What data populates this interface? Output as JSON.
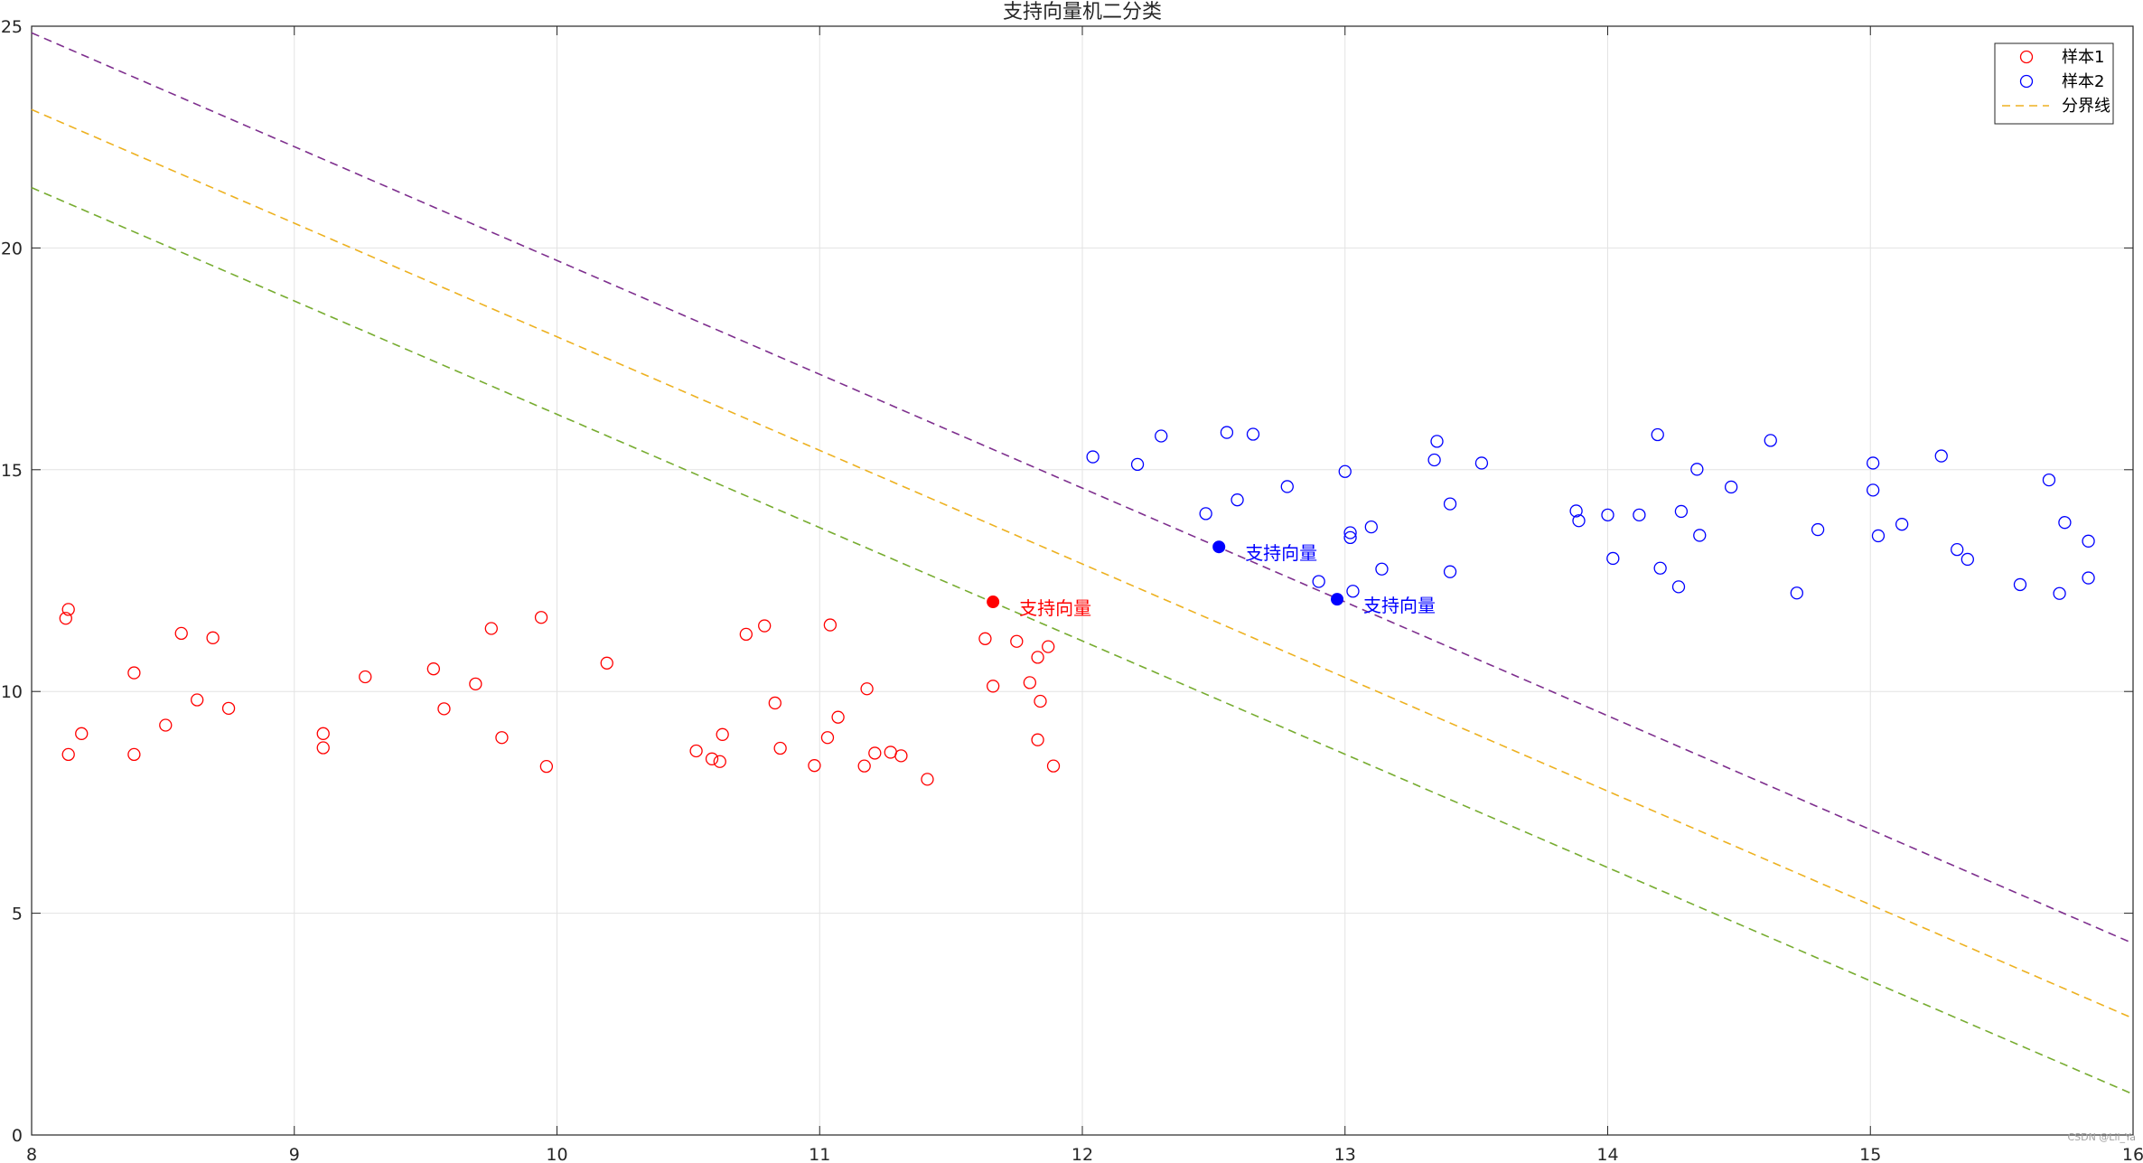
{
  "chart_data": {
    "type": "scatter",
    "title": "支持向量机二分类",
    "xlabel": "",
    "ylabel": "",
    "xlim": [
      8,
      16
    ],
    "ylim": [
      0,
      25
    ],
    "xticks": [
      8,
      9,
      10,
      11,
      12,
      13,
      14,
      15,
      16
    ],
    "yticks": [
      0,
      5,
      10,
      15,
      20,
      25
    ],
    "grid": true,
    "legend_position": "top-right",
    "series": [
      {
        "name": "样本1",
        "marker": "open-circle",
        "color": "#ff0000",
        "points": [
          [
            8.13,
            11.65
          ],
          [
            8.14,
            11.85
          ],
          [
            8.14,
            8.58
          ],
          [
            8.19,
            9.05
          ],
          [
            8.39,
            10.42
          ],
          [
            8.39,
            8.58
          ],
          [
            8.51,
            9.24
          ],
          [
            8.57,
            11.31
          ],
          [
            8.63,
            9.81
          ],
          [
            8.69,
            11.21
          ],
          [
            8.75,
            9.62
          ],
          [
            9.11,
            9.05
          ],
          [
            9.11,
            8.73
          ],
          [
            9.27,
            10.33
          ],
          [
            9.53,
            10.51
          ],
          [
            9.57,
            9.61
          ],
          [
            9.69,
            10.17
          ],
          [
            9.75,
            11.42
          ],
          [
            9.79,
            8.96
          ],
          [
            9.94,
            11.67
          ],
          [
            9.96,
            8.31
          ],
          [
            10.19,
            10.64
          ],
          [
            10.53,
            8.66
          ],
          [
            10.59,
            8.48
          ],
          [
            10.62,
            8.42
          ],
          [
            10.63,
            9.03
          ],
          [
            10.72,
            11.29
          ],
          [
            10.79,
            11.48
          ],
          [
            10.83,
            9.74
          ],
          [
            10.85,
            8.72
          ],
          [
            10.98,
            8.33
          ],
          [
            11.03,
            8.96
          ],
          [
            11.04,
            11.5
          ],
          [
            11.07,
            9.42
          ],
          [
            11.17,
            8.32
          ],
          [
            11.18,
            10.06
          ],
          [
            11.21,
            8.61
          ],
          [
            11.27,
            8.63
          ],
          [
            11.31,
            8.55
          ],
          [
            11.41,
            8.02
          ],
          [
            11.63,
            11.19
          ],
          [
            11.66,
            10.12
          ],
          [
            11.75,
            11.13
          ],
          [
            11.8,
            10.2
          ],
          [
            11.83,
            10.77
          ],
          [
            11.84,
            9.78
          ],
          [
            11.83,
            8.91
          ],
          [
            11.87,
            11.01
          ],
          [
            11.89,
            8.32
          ]
        ]
      },
      {
        "name": "样本2",
        "marker": "open-circle",
        "color": "#0000ff",
        "points": [
          [
            12.04,
            15.29
          ],
          [
            12.21,
            15.12
          ],
          [
            12.3,
            15.76
          ],
          [
            12.47,
            14.01
          ],
          [
            12.55,
            15.84
          ],
          [
            12.59,
            14.32
          ],
          [
            12.65,
            15.8
          ],
          [
            12.78,
            14.62
          ],
          [
            12.9,
            12.48
          ],
          [
            13.0,
            14.96
          ],
          [
            13.02,
            13.58
          ],
          [
            13.02,
            13.47
          ],
          [
            13.03,
            12.26
          ],
          [
            13.1,
            13.71
          ],
          [
            13.14,
            12.76
          ],
          [
            13.34,
            15.22
          ],
          [
            13.35,
            15.64
          ],
          [
            13.4,
            14.23
          ],
          [
            13.4,
            12.7
          ],
          [
            13.52,
            15.15
          ],
          [
            13.88,
            14.07
          ],
          [
            13.89,
            13.85
          ],
          [
            14.0,
            13.98
          ],
          [
            14.02,
            13.0
          ],
          [
            14.12,
            13.98
          ],
          [
            14.19,
            15.79
          ],
          [
            14.2,
            12.78
          ],
          [
            14.27,
            12.36
          ],
          [
            14.28,
            14.06
          ],
          [
            14.34,
            15.01
          ],
          [
            14.35,
            13.52
          ],
          [
            14.47,
            14.61
          ],
          [
            14.62,
            15.66
          ],
          [
            14.72,
            12.22
          ],
          [
            14.8,
            13.65
          ],
          [
            15.01,
            15.15
          ],
          [
            15.01,
            14.54
          ],
          [
            15.03,
            13.51
          ],
          [
            15.12,
            13.77
          ],
          [
            15.27,
            15.31
          ],
          [
            15.33,
            13.2
          ],
          [
            15.37,
            12.98
          ],
          [
            15.57,
            12.41
          ],
          [
            15.68,
            14.77
          ],
          [
            15.72,
            12.21
          ],
          [
            15.74,
            13.81
          ],
          [
            15.83,
            13.39
          ],
          [
            15.83,
            12.56
          ]
        ]
      },
      {
        "name": "分界线",
        "type": "line",
        "style": "dashed",
        "color": "#edb120",
        "points": [
          [
            8,
            23.12
          ],
          [
            16,
            2.63
          ]
        ]
      },
      {
        "type": "line",
        "style": "dashed",
        "color": "#7e2f8e",
        "points": [
          [
            8,
            24.85
          ],
          [
            16,
            4.32
          ]
        ]
      },
      {
        "type": "line",
        "style": "dashed",
        "color": "#77ac30",
        "points": [
          [
            8,
            21.36
          ],
          [
            16,
            0.92
          ]
        ]
      }
    ],
    "support_vectors": [
      {
        "x": 11.66,
        "y": 12.02,
        "color": "#ff0000",
        "label": "支持向量"
      },
      {
        "x": 12.52,
        "y": 13.26,
        "color": "#0000ff",
        "label": "支持向量"
      },
      {
        "x": 12.97,
        "y": 12.08,
        "color": "#0000ff",
        "label": "支持向量"
      }
    ]
  },
  "watermark": "CSDN @Lil_Ya"
}
